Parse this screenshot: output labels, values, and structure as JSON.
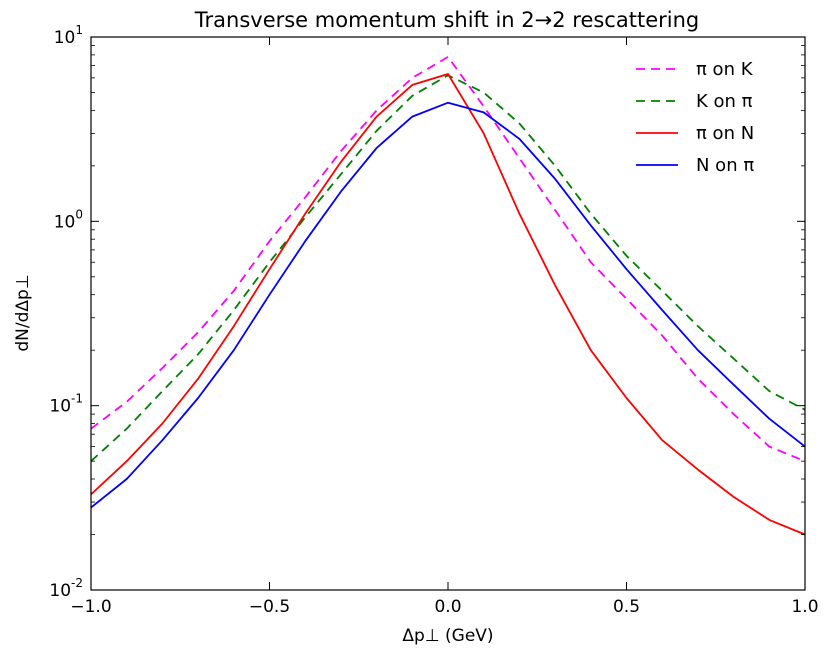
{
  "chart_data": {
    "type": "line",
    "title": "Transverse momentum shift in 2→2 rescattering",
    "xlabel": "Δp⊥ (GeV)",
    "ylabel": "dN/dΔp⊥",
    "xlim": [
      -1.0,
      1.0
    ],
    "ylim": [
      0.01,
      10
    ],
    "yscale": "log",
    "x_ticks": [
      {
        "value": -1.0,
        "label": "−1.0"
      },
      {
        "value": -0.5,
        "label": "−0.5"
      },
      {
        "value": 0.0,
        "label": "0.0"
      },
      {
        "value": 0.5,
        "label": "0.5"
      },
      {
        "value": 1.0,
        "label": "1.0"
      }
    ],
    "y_ticks": [
      {
        "value": 10,
        "base": "10",
        "exp": "1"
      },
      {
        "value": 1,
        "base": "10",
        "exp": "0"
      },
      {
        "value": 0.1,
        "base": "10",
        "exp": "-1"
      },
      {
        "value": 0.01,
        "base": "10",
        "exp": "-2"
      }
    ],
    "legend_position": "top-right",
    "x": [
      -1.0,
      -0.9,
      -0.8,
      -0.7,
      -0.6,
      -0.5,
      -0.4,
      -0.3,
      -0.2,
      -0.1,
      0.0,
      0.1,
      0.2,
      0.3,
      0.4,
      0.5,
      0.6,
      0.7,
      0.8,
      0.9,
      1.0
    ],
    "series": [
      {
        "name": "π on K",
        "color": "#ff00ff",
        "style": "dashed",
        "values": [
          0.075,
          0.105,
          0.16,
          0.25,
          0.42,
          0.78,
          1.35,
          2.4,
          4.0,
          6.0,
          7.8,
          4.2,
          2.2,
          1.15,
          0.6,
          0.38,
          0.24,
          0.14,
          0.09,
          0.06,
          0.05
        ]
      },
      {
        "name": "K on π",
        "color": "#008000",
        "style": "dashed",
        "values": [
          0.05,
          0.075,
          0.12,
          0.19,
          0.33,
          0.6,
          1.05,
          1.8,
          3.1,
          4.8,
          6.2,
          5.0,
          3.4,
          2.0,
          1.1,
          0.65,
          0.42,
          0.27,
          0.18,
          0.12,
          0.095
        ]
      },
      {
        "name": "π on N",
        "color": "#ff0000",
        "style": "solid",
        "values": [
          0.033,
          0.05,
          0.08,
          0.14,
          0.27,
          0.55,
          1.1,
          2.1,
          3.7,
          5.5,
          6.3,
          3.0,
          1.1,
          0.45,
          0.2,
          0.11,
          0.065,
          0.045,
          0.032,
          0.024,
          0.02
        ]
      },
      {
        "name": "N on π",
        "color": "#0000ff",
        "style": "solid",
        "values": [
          0.028,
          0.04,
          0.065,
          0.11,
          0.2,
          0.4,
          0.78,
          1.45,
          2.5,
          3.7,
          4.4,
          3.9,
          2.8,
          1.7,
          0.95,
          0.55,
          0.33,
          0.2,
          0.13,
          0.085,
          0.06
        ]
      }
    ]
  }
}
